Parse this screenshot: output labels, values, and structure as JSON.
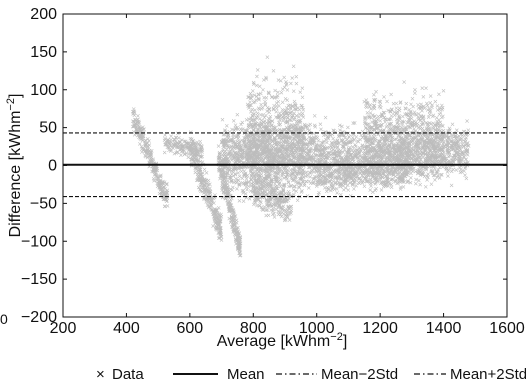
{
  "chart_data": {
    "type": "scatter",
    "title": "",
    "xlabel": "Average [kWhm",
    "xlabel_sup": "−2",
    "xlabel_end": "]",
    "ylabel": "Difference [kWhm",
    "ylabel_sup": "−2",
    "ylabel_end": "]",
    "xlim": [
      200,
      1600
    ],
    "ylim": [
      -200,
      200
    ],
    "x_ticks": [
      200,
      400,
      600,
      800,
      1000,
      1200,
      1400,
      1600
    ],
    "y_ticks": [
      200,
      150,
      100,
      50,
      0,
      -50,
      -100,
      -150,
      -200
    ],
    "x_tick_labels": [
      "200",
      "400",
      "600",
      "800",
      "1000",
      "1200",
      "1400",
      "1600"
    ],
    "y_tick_labels": [
      "200",
      "150",
      "100",
      "50",
      "0",
      "−50",
      "−100",
      "−150",
      "−200"
    ],
    "stray_label": "0",
    "grid": false,
    "legend_position": "bottom",
    "series": [
      {
        "name": "Data",
        "marker": "x",
        "color": "#bdbdbd",
        "clusters": [
          {
            "x_range": [
              420,
              530
            ],
            "y_center_start": 65,
            "y_center_end": -45,
            "spread": 8,
            "count": 260
          },
          {
            "x_range": [
              520,
              640
            ],
            "y_center_start": 30,
            "y_center_end": 20,
            "spread": 6,
            "count": 160
          },
          {
            "x_range": [
              600,
              700
            ],
            "y_center_start": 22,
            "y_center_end": -85,
            "spread": 10,
            "count": 300
          },
          {
            "x_range": [
              690,
              760
            ],
            "y_center_start": 10,
            "y_center_end": -110,
            "spread": 9,
            "count": 260
          },
          {
            "x_range": [
              700,
              1000
            ],
            "y_center_start": 10,
            "y_center_end": 15,
            "spread": 22,
            "count": 1200
          },
          {
            "x_range": [
              780,
              960
            ],
            "y_center_start": 40,
            "y_center_end": 35,
            "spread": 35,
            "count": 700
          },
          {
            "x_range": [
              800,
              920
            ],
            "y_center_start": -30,
            "y_center_end": -55,
            "spread": 12,
            "count": 260
          },
          {
            "x_range": [
              1000,
              1480
            ],
            "y_center_start": 10,
            "y_center_end": 18,
            "spread": 18,
            "count": 1500
          },
          {
            "x_range": [
              1150,
              1400
            ],
            "y_center_start": 40,
            "y_center_end": 45,
            "spread": 25,
            "count": 600
          },
          {
            "x_range": [
              1000,
              1300
            ],
            "y_center_start": -15,
            "y_center_end": -5,
            "spread": 10,
            "count": 400
          }
        ]
      },
      {
        "name": "Mean",
        "line_style": "solid",
        "value": 1
      },
      {
        "name": "Mean−2Std",
        "line_style": "dashed",
        "value": -41
      },
      {
        "name": "Mean+2Std",
        "line_style": "dashed",
        "value": 43
      }
    ],
    "legend": {
      "data_label": "Data",
      "data_marker": "×",
      "mean_label": "Mean",
      "minus_label": "Mean−2Std",
      "plus_label": "Mean+2Std"
    }
  }
}
